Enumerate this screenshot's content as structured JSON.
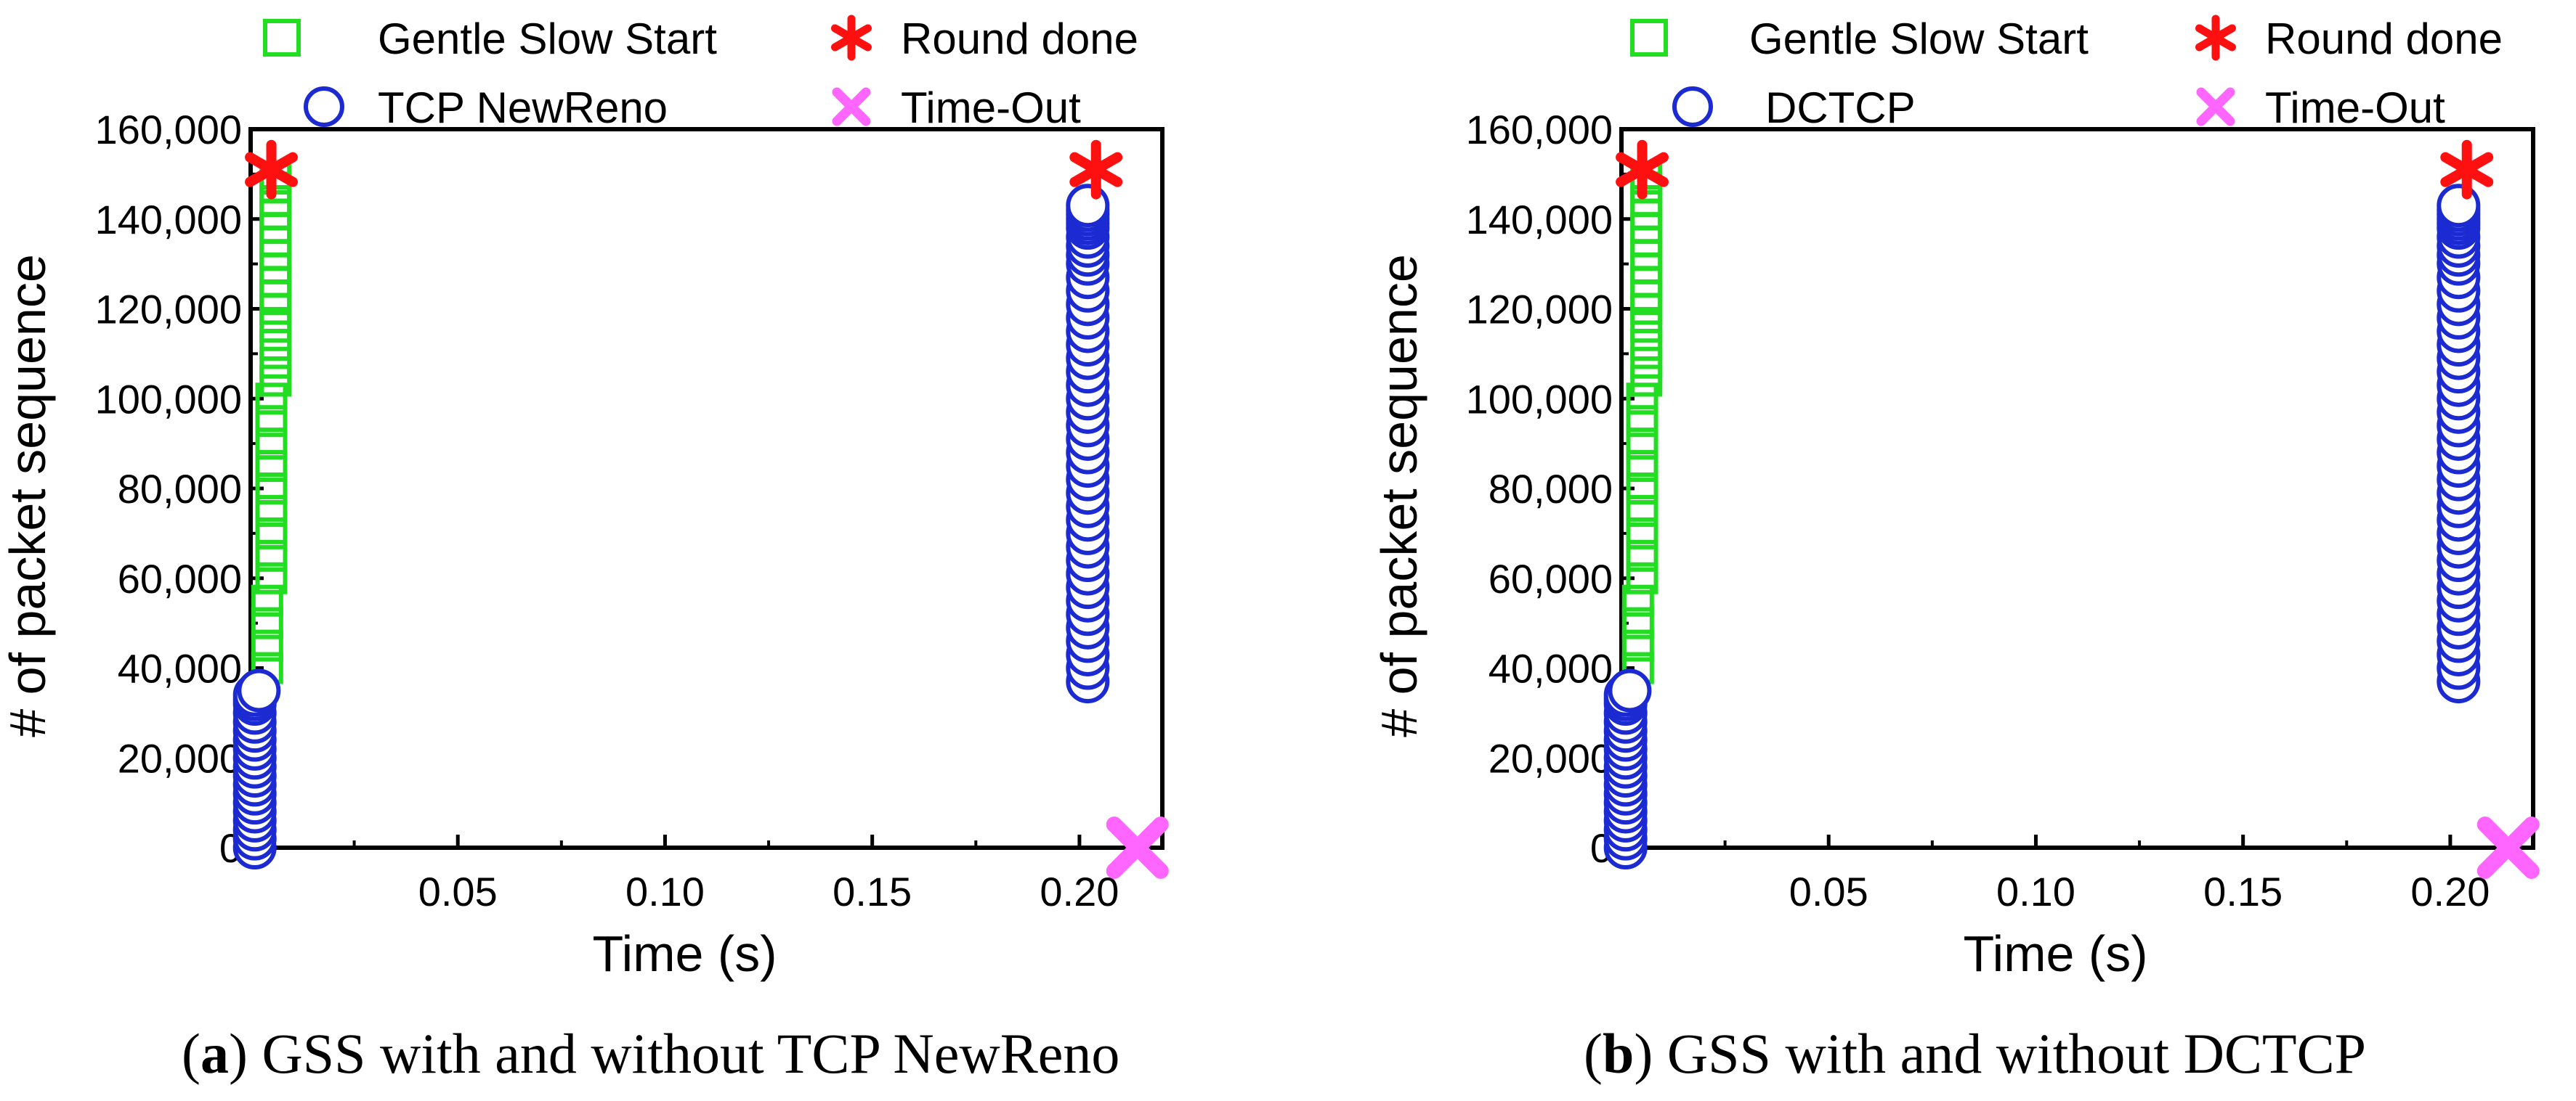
{
  "chart_data": [
    {
      "type": "scatter",
      "caption_prefix": "(",
      "caption_letter": "a",
      "caption_text": ") GSS with and without TCP NewReno",
      "xlabel": "Time (s)",
      "ylabel": "# of packet sequence",
      "xlim": [
        0.0,
        0.22
      ],
      "ylim": [
        0,
        160000
      ],
      "xticks": [
        0.05,
        0.1,
        0.15,
        0.2
      ],
      "xtick_labels": [
        "0.05",
        "0.10",
        "0.15",
        "0.20"
      ],
      "yticks": [
        0,
        20000,
        40000,
        60000,
        80000,
        100000,
        120000,
        140000,
        160000
      ],
      "ytick_labels": [
        "0",
        "20,000",
        "40,000",
        "60,000",
        "80,000",
        "100,000",
        "120,000",
        "140,000",
        "160,000"
      ],
      "grid": false,
      "legend_position": "top",
      "series": [
        {
          "name": "Gentle Slow Start",
          "marker": "square-open",
          "color": "#22dd22",
          "x": [
            0.004,
            0.004,
            0.004,
            0.004,
            0.005,
            0.005,
            0.005,
            0.005,
            0.005,
            0.005,
            0.005,
            0.005,
            0.005,
            0.006,
            0.006,
            0.006,
            0.006,
            0.006,
            0.006,
            0.006,
            0.006,
            0.006,
            0.006,
            0.006,
            0.006,
            0.006,
            0.006,
            0.006
          ],
          "y": [
            40000,
            45000,
            50000,
            55000,
            60000,
            65000,
            70000,
            75000,
            80000,
            85000,
            90000,
            95000,
            100000,
            104000,
            108000,
            112000,
            116000,
            120000,
            123000,
            126000,
            129000,
            132000,
            135000,
            138000,
            141000,
            144000,
            147000,
            149000
          ]
        },
        {
          "name": "TCP NewReno",
          "marker": "circle-open",
          "color": "#1c2bd1",
          "x": [
            0.001,
            0.001,
            0.001,
            0.001,
            0.001,
            0.001,
            0.001,
            0.001,
            0.001,
            0.001,
            0.001,
            0.001,
            0.001,
            0.001,
            0.001,
            0.001,
            0.001,
            0.001,
            0.001,
            0.002,
            0.202,
            0.202,
            0.202,
            0.202,
            0.202,
            0.202,
            0.202,
            0.202,
            0.202,
            0.202,
            0.202,
            0.202,
            0.202,
            0.202,
            0.202,
            0.202,
            0.202,
            0.202,
            0.202,
            0.202,
            0.202,
            0.202,
            0.202,
            0.202,
            0.202,
            0.202,
            0.202,
            0.202,
            0.202,
            0.202,
            0.202,
            0.202,
            0.202,
            0.202,
            0.202,
            0.202,
            0.202,
            0.202,
            0.202,
            0.202,
            0.202
          ],
          "y": [
            0,
            2000,
            4000,
            6000,
            8000,
            10000,
            12000,
            14000,
            16000,
            18000,
            20000,
            22000,
            24000,
            26000,
            28000,
            30000,
            32000,
            33000,
            34000,
            35000,
            37000,
            40000,
            43000,
            46000,
            49000,
            52000,
            55000,
            58000,
            61000,
            64000,
            67000,
            70000,
            73000,
            76000,
            79000,
            82000,
            85000,
            88000,
            91000,
            94000,
            97000,
            100000,
            103000,
            106000,
            109000,
            112000,
            115000,
            118000,
            121000,
            124000,
            127000,
            130000,
            132000,
            134000,
            136000,
            138000,
            139000,
            140000,
            141000,
            142000,
            143000
          ]
        },
        {
          "name": "Round done",
          "marker": "asterisk",
          "color": "#ff1010",
          "x": [
            0.005,
            0.204
          ],
          "y": [
            151000,
            151000
          ]
        },
        {
          "name": "Time-Out",
          "marker": "x",
          "color": "#ff66ff",
          "x": [
            0.214
          ],
          "y": [
            0
          ]
        }
      ]
    },
    {
      "type": "scatter",
      "caption_prefix": "(",
      "caption_letter": "b",
      "caption_text": ") GSS with and without DCTCP",
      "xlabel": "Time (s)",
      "ylabel": "# of packet sequence",
      "xlim": [
        0.0,
        0.22
      ],
      "ylim": [
        0,
        160000
      ],
      "xticks": [
        0.05,
        0.1,
        0.15,
        0.2
      ],
      "xtick_labels": [
        "0.05",
        "0.10",
        "0.15",
        "0.20"
      ],
      "yticks": [
        0,
        20000,
        40000,
        60000,
        80000,
        100000,
        120000,
        140000,
        160000
      ],
      "ytick_labels": [
        "0",
        "20,000",
        "40,000",
        "60,000",
        "80,000",
        "100,000",
        "120,000",
        "140,000",
        "160,000"
      ],
      "grid": false,
      "legend_position": "top",
      "series": [
        {
          "name": "Gentle Slow Start",
          "marker": "square-open",
          "color": "#22dd22",
          "x": [
            0.004,
            0.004,
            0.004,
            0.004,
            0.005,
            0.005,
            0.005,
            0.005,
            0.005,
            0.005,
            0.005,
            0.005,
            0.005,
            0.006,
            0.006,
            0.006,
            0.006,
            0.006,
            0.006,
            0.006,
            0.006,
            0.006,
            0.006,
            0.006,
            0.006,
            0.006,
            0.006,
            0.006
          ],
          "y": [
            40000,
            45000,
            50000,
            55000,
            60000,
            65000,
            70000,
            75000,
            80000,
            85000,
            90000,
            95000,
            100000,
            104000,
            108000,
            112000,
            116000,
            120000,
            123000,
            126000,
            129000,
            132000,
            135000,
            138000,
            141000,
            144000,
            147000,
            149000
          ]
        },
        {
          "name": "DCTCP",
          "marker": "circle-open",
          "color": "#1c2bd1",
          "x": [
            0.001,
            0.001,
            0.001,
            0.001,
            0.001,
            0.001,
            0.001,
            0.001,
            0.001,
            0.001,
            0.001,
            0.001,
            0.001,
            0.001,
            0.001,
            0.001,
            0.001,
            0.001,
            0.001,
            0.002,
            0.202,
            0.202,
            0.202,
            0.202,
            0.202,
            0.202,
            0.202,
            0.202,
            0.202,
            0.202,
            0.202,
            0.202,
            0.202,
            0.202,
            0.202,
            0.202,
            0.202,
            0.202,
            0.202,
            0.202,
            0.202,
            0.202,
            0.202,
            0.202,
            0.202,
            0.202,
            0.202,
            0.202,
            0.202,
            0.202,
            0.202,
            0.202,
            0.202,
            0.202,
            0.202,
            0.202,
            0.202,
            0.202,
            0.202,
            0.202,
            0.202
          ],
          "y": [
            0,
            2000,
            4000,
            6000,
            8000,
            10000,
            12000,
            14000,
            16000,
            18000,
            20000,
            22000,
            24000,
            26000,
            28000,
            30000,
            32000,
            33000,
            34000,
            35000,
            37000,
            40000,
            43000,
            46000,
            49000,
            52000,
            55000,
            58000,
            61000,
            64000,
            67000,
            70000,
            73000,
            76000,
            79000,
            82000,
            85000,
            88000,
            91000,
            94000,
            97000,
            100000,
            103000,
            106000,
            109000,
            112000,
            115000,
            118000,
            121000,
            124000,
            127000,
            130000,
            132000,
            134000,
            136000,
            138000,
            139000,
            140000,
            141000,
            142000,
            143000
          ]
        },
        {
          "name": "Round done",
          "marker": "asterisk",
          "color": "#ff1010",
          "x": [
            0.005,
            0.204
          ],
          "y": [
            151000,
            151000
          ]
        },
        {
          "name": "Time-Out",
          "marker": "x",
          "color": "#ff66ff",
          "x": [
            0.214
          ],
          "y": [
            0
          ]
        }
      ]
    }
  ]
}
